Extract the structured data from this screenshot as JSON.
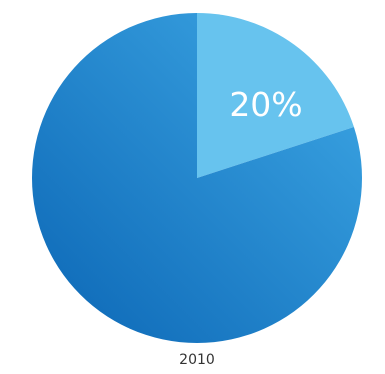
{
  "chart_data": {
    "type": "pie",
    "title": "",
    "category_label": "2010",
    "slices": [
      {
        "value": 20,
        "label": "20%",
        "color": "#67c3ee"
      },
      {
        "value": 80,
        "label": "",
        "color_start": "#0b66b5",
        "color_end": "#3fa9e6"
      }
    ],
    "start_angle_deg": 0,
    "direction": "clockwise"
  }
}
